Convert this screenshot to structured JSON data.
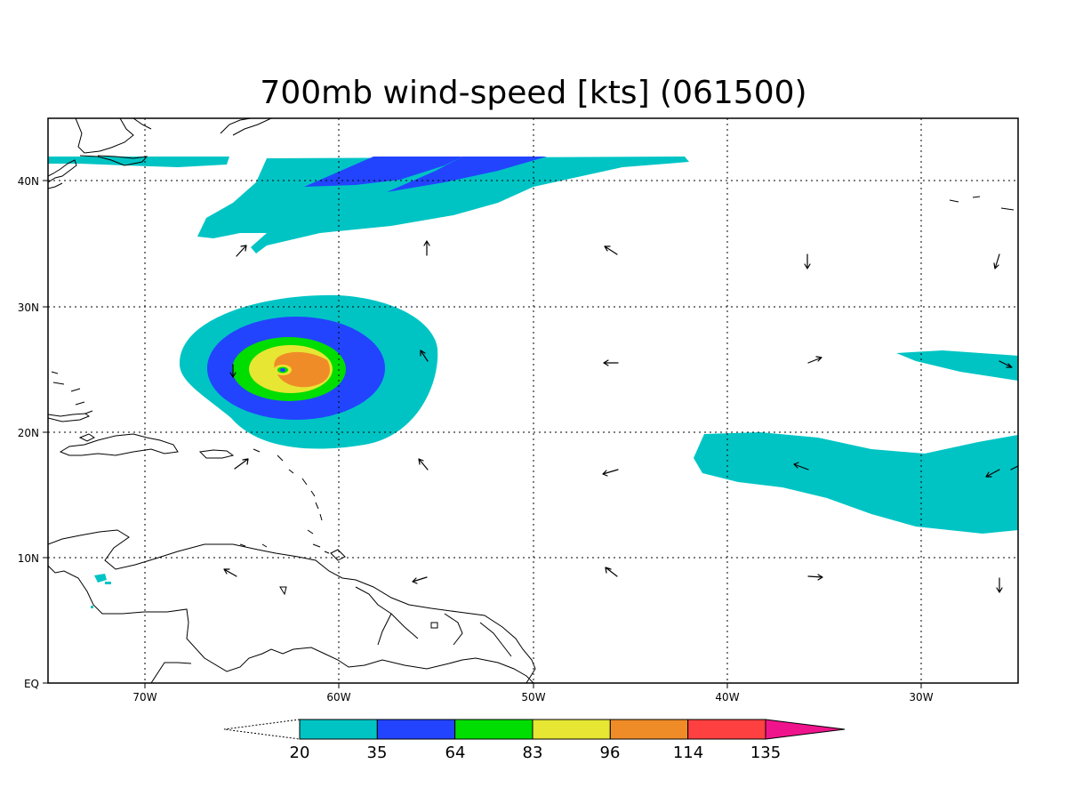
{
  "title": "700mb wind-speed [kts] (061500)",
  "axes": {
    "lon_labels": [
      "70W",
      "60W",
      "50W",
      "40W",
      "30W"
    ],
    "lat_labels": [
      "40N",
      "30N",
      "20N",
      "10N",
      "EQ"
    ]
  },
  "colorbar": {
    "labels": [
      "20",
      "35",
      "64",
      "83",
      "96",
      "114",
      "135"
    ],
    "colors": [
      "#00c4c4",
      "#2244ff",
      "#00dd00",
      "#e6e633",
      "#f08c28",
      "#ff4040",
      "#f0148c"
    ]
  },
  "chart_data": {
    "type": "heatmap",
    "title": "700mb wind-speed [kts] (061500)",
    "xlim": [
      -75,
      -25
    ],
    "ylim": [
      0,
      44
    ],
    "x_ticks": [
      -70,
      -60,
      -50,
      -40,
      -30
    ],
    "y_ticks": [
      0,
      10,
      20,
      30,
      40
    ],
    "levels": [
      20,
      35,
      64,
      83,
      96,
      114,
      135
    ],
    "grid": true,
    "features": [
      {
        "name": "hurricane core",
        "center_lon": -63,
        "center_lat": 25,
        "max_level": 96
      },
      {
        "name": "mid-latitude jet",
        "lon_range": [
          -67,
          -42
        ],
        "lat_range": [
          35,
          42
        ],
        "max_level": 35
      },
      {
        "name": "easterly band",
        "lon_range": [
          -42,
          -25
        ],
        "lat_range": [
          12,
          20
        ],
        "max_level": 20
      },
      {
        "name": "northeast band",
        "lon_range": [
          -31,
          -25
        ],
        "lat_range": [
          24,
          26
        ],
        "max_level": 20
      }
    ]
  }
}
